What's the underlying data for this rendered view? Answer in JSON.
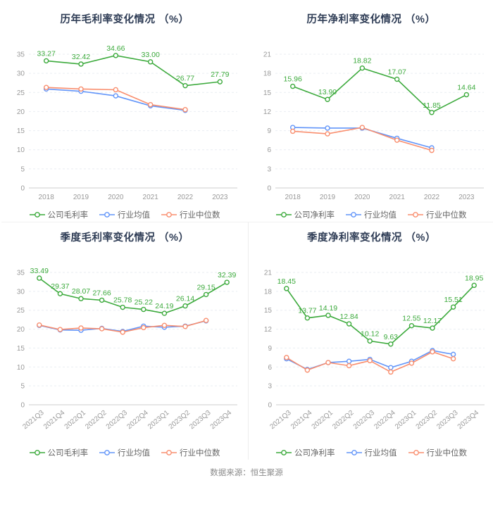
{
  "page": {
    "source_note": "数据来源：恒生聚源"
  },
  "colors": {
    "company": "#3caa3c",
    "average": "#6295f9",
    "median": "#f98e6e",
    "title_text": "#2e3c55",
    "axis_text": "#999999",
    "legend_text": "#666666",
    "grid_line": "#e9edf2",
    "axis_line": "#cccccc"
  },
  "chart_data": [
    {
      "type": "line",
      "title": "历年毛利率变化情况 （%）",
      "categories": [
        "2018",
        "2019",
        "2020",
        "2021",
        "2022",
        "2023"
      ],
      "ylim": [
        0,
        35
      ],
      "ystep": 5,
      "rotate_labels": false,
      "grid": true,
      "legend_position": "bottom",
      "series": [
        {
          "name": "公司毛利率",
          "color": "company",
          "show_labels": true,
          "values": [
            33.27,
            32.42,
            34.66,
            33.0,
            26.77,
            27.79
          ]
        },
        {
          "name": "行业均值",
          "color": "average",
          "show_labels": false,
          "values": [
            25.9,
            25.3,
            24.1,
            21.5,
            20.3
          ]
        },
        {
          "name": "行业中位数",
          "color": "median",
          "show_labels": false,
          "values": [
            26.3,
            25.9,
            25.7,
            21.8,
            20.5
          ]
        }
      ]
    },
    {
      "type": "line",
      "title": "历年净利率变化情况 （%）",
      "categories": [
        "2018",
        "2019",
        "2020",
        "2021",
        "2022",
        "2023"
      ],
      "ylim": [
        0,
        21
      ],
      "ystep": 3,
      "rotate_labels": false,
      "grid": true,
      "legend_position": "bottom",
      "series": [
        {
          "name": "公司净利率",
          "color": "company",
          "show_labels": true,
          "values": [
            15.96,
            13.9,
            18.82,
            17.07,
            11.85,
            14.64
          ]
        },
        {
          "name": "行业均值",
          "color": "average",
          "show_labels": false,
          "values": [
            9.5,
            9.4,
            9.4,
            7.8,
            6.3
          ]
        },
        {
          "name": "行业中位数",
          "color": "median",
          "show_labels": false,
          "values": [
            8.9,
            8.5,
            9.5,
            7.5,
            5.9
          ]
        }
      ]
    },
    {
      "type": "line",
      "title": "季度毛利率变化情况 （%）",
      "categories": [
        "2021Q3",
        "2021Q4",
        "2022Q1",
        "2022Q2",
        "2022Q3",
        "2022Q4",
        "2023Q1",
        "2023Q2",
        "2023Q3",
        "2023Q4"
      ],
      "ylim": [
        0,
        35
      ],
      "ystep": 5,
      "rotate_labels": true,
      "grid": true,
      "legend_position": "bottom",
      "series": [
        {
          "name": "公司毛利率",
          "color": "company",
          "show_labels": true,
          "values": [
            33.49,
            29.37,
            28.07,
            27.66,
            25.78,
            25.22,
            24.19,
            26.14,
            29.15,
            32.39
          ]
        },
        {
          "name": "行业均值",
          "color": "average",
          "show_labels": false,
          "values": [
            21.0,
            19.8,
            19.7,
            20.2,
            19.4,
            20.8,
            20.5,
            20.8,
            22.2
          ]
        },
        {
          "name": "行业中位数",
          "color": "median",
          "show_labels": false,
          "values": [
            21.1,
            19.9,
            20.3,
            20.1,
            19.2,
            20.4,
            21.0,
            20.7,
            22.3
          ]
        }
      ]
    },
    {
      "type": "line",
      "title": "季度净利率变化情况 （%）",
      "categories": [
        "2021Q3",
        "2021Q4",
        "2022Q1",
        "2022Q2",
        "2022Q3",
        "2022Q4",
        "2023Q1",
        "2023Q2",
        "2023Q3",
        "2023Q4"
      ],
      "ylim": [
        0,
        21
      ],
      "ystep": 3,
      "rotate_labels": true,
      "grid": true,
      "legend_position": "bottom",
      "series": [
        {
          "name": "公司净利率",
          "color": "company",
          "show_labels": true,
          "values": [
            18.45,
            13.77,
            14.19,
            12.84,
            10.12,
            9.63,
            12.55,
            12.17,
            15.51,
            18.95
          ]
        },
        {
          "name": "行业均值",
          "color": "average",
          "show_labels": false,
          "values": [
            7.3,
            5.6,
            6.7,
            6.9,
            7.2,
            5.9,
            6.9,
            8.6,
            8.0
          ]
        },
        {
          "name": "行业中位数",
          "color": "median",
          "show_labels": false,
          "values": [
            7.5,
            5.5,
            6.7,
            6.2,
            7.0,
            5.2,
            6.6,
            8.4,
            7.3
          ]
        }
      ]
    }
  ]
}
